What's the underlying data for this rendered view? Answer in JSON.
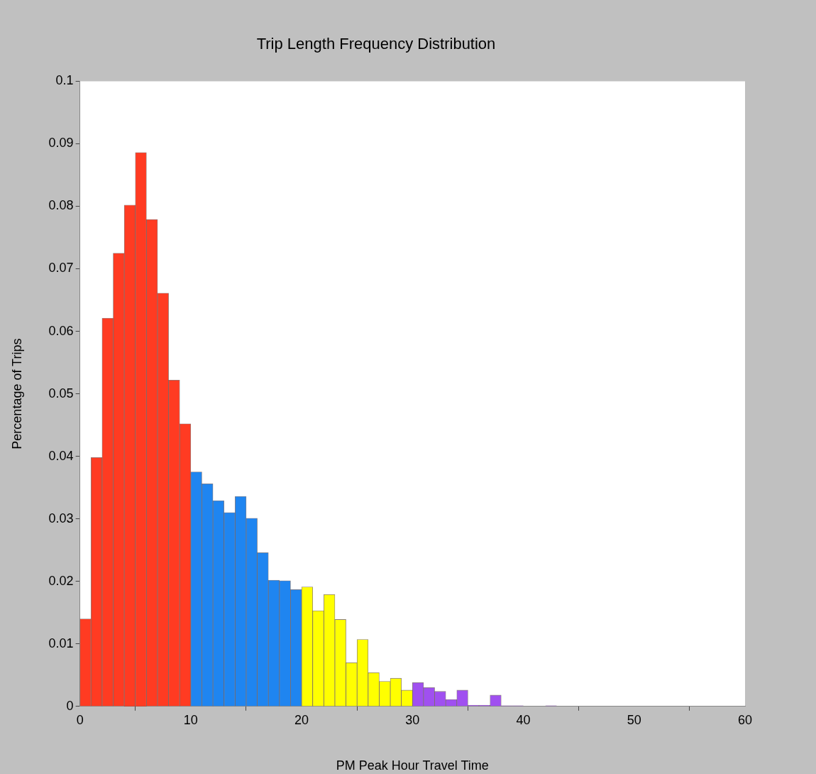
{
  "chart_data": {
    "type": "histogram",
    "title": "Trip Length Frequency Distribution",
    "xlabel": "PM Peak Hour Travel Time",
    "ylabel": "Percentage of Trips",
    "bins": [
      0,
      1,
      2,
      3,
      4,
      5,
      6,
      7,
      8,
      9,
      10,
      11,
      12,
      13,
      14,
      15,
      16,
      17,
      18,
      19,
      20,
      21,
      22,
      23,
      24,
      25,
      26,
      27,
      28,
      29,
      30,
      31,
      32,
      33,
      34,
      35,
      36,
      37,
      38,
      39,
      40,
      41,
      42,
      43,
      44,
      45,
      46,
      47,
      48,
      49,
      50,
      51,
      52,
      53,
      54,
      55,
      56,
      57,
      58,
      59,
      60
    ],
    "values": [
      0.014,
      0.0398,
      0.0621,
      0.0725,
      0.0802,
      0.0886,
      0.0779,
      0.0661,
      0.0522,
      0.0452,
      0.0375,
      0.0356,
      0.0329,
      0.031,
      0.0336,
      0.0301,
      0.0246,
      0.0202,
      0.0201,
      0.0187,
      0.0191,
      0.0153,
      0.0179,
      0.0139,
      0.007,
      0.0107,
      0.0054,
      0.004,
      0.0045,
      0.0026,
      0.0038,
      0.003,
      0.0024,
      0.0011,
      0.0026,
      0.0002,
      0.0002,
      0.0018,
      0.0001,
      0.0001,
      0,
      0,
      0.0001,
      0,
      0,
      0,
      0,
      0,
      0,
      0,
      0,
      0,
      0,
      0,
      0,
      0,
      0,
      0,
      0,
      0
    ],
    "colors": [
      "#ff3b22",
      "#ff3b22",
      "#ff3b22",
      "#ff3b22",
      "#ff3b22",
      "#ff3b22",
      "#ff3b22",
      "#ff3b22",
      "#ff3b22",
      "#ff3b22",
      "#1f85f0",
      "#1f85f0",
      "#1f85f0",
      "#1f85f0",
      "#1f85f0",
      "#1f85f0",
      "#1f85f0",
      "#1f85f0",
      "#1f85f0",
      "#1f85f0",
      "#ffff00",
      "#ffff00",
      "#ffff00",
      "#ffff00",
      "#ffff00",
      "#ffff00",
      "#ffff00",
      "#ffff00",
      "#ffff00",
      "#ffff00",
      "#a050f0",
      "#a050f0",
      "#a050f0",
      "#a050f0",
      "#a050f0",
      "#a050f0",
      "#a050f0",
      "#a050f0",
      "#a050f0",
      "#a050f0",
      "#a050f0",
      "#a050f0",
      "#a050f0",
      "#a050f0",
      "#a050f0",
      "#a050f0",
      "#a050f0",
      "#a050f0",
      "#a050f0",
      "#a050f0",
      "#a050f0",
      "#a050f0",
      "#a050f0",
      "#a050f0",
      "#a050f0",
      "#a050f0",
      "#a050f0",
      "#a050f0",
      "#a050f0",
      "#a050f0"
    ],
    "xlim": [
      0,
      60
    ],
    "xticks": [
      0,
      10,
      20,
      30,
      40,
      50,
      60
    ],
    "ylim": [
      0,
      0.1
    ],
    "yticks": [
      0,
      0.01,
      0.02,
      0.03,
      0.04,
      0.05,
      0.06,
      0.07,
      0.08,
      0.09,
      0.1
    ],
    "grid": false,
    "legend": false
  }
}
